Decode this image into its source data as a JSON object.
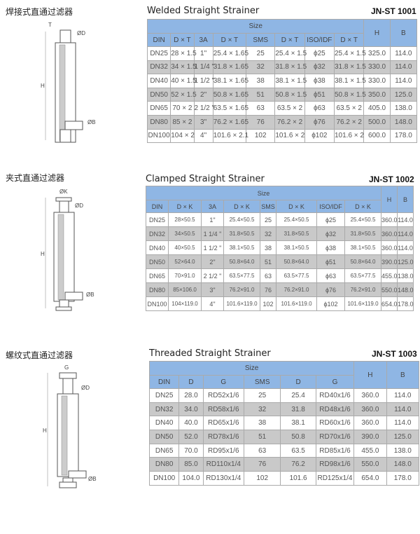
{
  "sections": [
    {
      "cn_title": "焊接式直通过滤器",
      "title": "Welded Straight Strainer",
      "code": "JN-ST 1001",
      "size_label": "Size",
      "headers": [
        "DIN",
        "D × T",
        "3A",
        "D × T",
        "SMS",
        "D × T",
        "ISO/IDF",
        "D × T"
      ],
      "h_label": "H",
      "b_label": "B",
      "dims": {
        "top": "T",
        "d": "ØD",
        "b": "ØB",
        "h": "H"
      },
      "rows": [
        [
          "DN25",
          "28 × 1.5",
          "1\"",
          "25.4 × 1.65",
          "25",
          "25.4 × 1.5",
          "ϕ25",
          "25.4 × 1.5",
          "325.0",
          "114.0"
        ],
        [
          "DN32",
          "34 × 1.5",
          "1 1/4 \"",
          "31.8 × 1.65",
          "32",
          "31.8 × 1.5",
          "ϕ32",
          "31.8 × 1.5",
          "330.0",
          "114.0"
        ],
        [
          "DN40",
          "40 × 1.5",
          "1 1/2 \"",
          "38.1 × 1.65",
          "38",
          "38.1 × 1.5",
          "ϕ38",
          "38.1 × 1.5",
          "330.0",
          "114.0"
        ],
        [
          "DN50",
          "52 × 1.5",
          "2\"",
          "50.8 × 1.65",
          "51",
          "50.8 × 1.5",
          "ϕ51",
          "50.8 × 1.5",
          "350.0",
          "125.0"
        ],
        [
          "DN65",
          "70 × 2",
          "2 1/2 \"",
          "63.5 × 1.65",
          "63",
          "63.5 × 2",
          "ϕ63",
          "63.5 × 2",
          "405.0",
          "138.0"
        ],
        [
          "DN80",
          "85 × 2",
          "3\"",
          "76.2 × 1.65",
          "76",
          "76.2 × 2",
          "ϕ76",
          "76.2 × 2",
          "500.0",
          "148.0"
        ],
        [
          "DN100",
          "104 × 2",
          "4\"",
          "101.6 × 2.1",
          "102",
          "101.6 × 2",
          "ϕ102",
          "101.6 × 2",
          "600.0",
          "178.0"
        ]
      ]
    },
    {
      "cn_title": "夹式直通过滤器",
      "title": "Clamped Straight Strainer",
      "code": "JN-ST 1002",
      "size_label": "Size",
      "headers": [
        "DIN",
        "D × K",
        "3A",
        "D × K",
        "SMS",
        "D × K",
        "ISO/IDF",
        "D × K"
      ],
      "h_label": "H",
      "b_label": "B",
      "dims": {
        "top": "ØK",
        "d": "ØD",
        "b": "ØB",
        "h": "H"
      },
      "rows": [
        [
          "DN25",
          "28×50.5",
          "1\"",
          "25.4×50.5",
          "25",
          "25.4×50.5",
          "ϕ25",
          "25.4×50.5",
          "360.0",
          "114.0"
        ],
        [
          "DN32",
          "34×50.5",
          "1 1/4 \"",
          "31.8×50.5",
          "32",
          "31.8×50.5",
          "ϕ32",
          "31.8×50.5",
          "360.0",
          "114.0"
        ],
        [
          "DN40",
          "40×50.5",
          "1 1/2 \"",
          "38.1×50.5",
          "38",
          "38.1×50.5",
          "ϕ38",
          "38.1×50.5",
          "360.0",
          "114.0"
        ],
        [
          "DN50",
          "52×64.0",
          "2\"",
          "50.8×64.0",
          "51",
          "50.8×64.0",
          "ϕ51",
          "50.8×64.0",
          "390.0",
          "125.0"
        ],
        [
          "DN65",
          "70×91.0",
          "2 1/2 \"",
          "63.5×77.5",
          "63",
          "63.5×77.5",
          "ϕ63",
          "63.5×77.5",
          "455.0",
          "138.0"
        ],
        [
          "DN80",
          "85×106.0",
          "3\"",
          "76.2×91.0",
          "76",
          "76.2×91.0",
          "ϕ76",
          "76.2×91.0",
          "550.0",
          "148.0"
        ],
        [
          "DN100",
          "104×119.0",
          "4\"",
          "101.6×119.0",
          "102",
          "101.6×119.0",
          "ϕ102",
          "101.6×119.0",
          "654.0",
          "178.0"
        ]
      ]
    },
    {
      "cn_title": "螺纹式直通过滤器",
      "title": "Threaded Straight Strainer",
      "code": "JN-ST 1003",
      "size_label": "Size",
      "headers": [
        "DIN",
        "D",
        "G",
        "SMS",
        "D",
        "G"
      ],
      "h_label": "H",
      "b_label": "B",
      "dims": {
        "top": "G",
        "d": "ØD",
        "b": "ØB",
        "h": "H"
      },
      "rows": [
        [
          "DN25",
          "28.0",
          "RD52x1/6",
          "25",
          "25.4",
          "RD40x1/6",
          "360.0",
          "114.0"
        ],
        [
          "DN32",
          "34.0",
          "RD58x1/6",
          "32",
          "31.8",
          "RD48x1/6",
          "360.0",
          "114.0"
        ],
        [
          "DN40",
          "40.0",
          "RD65x1/6",
          "38",
          "38.1",
          "RD60x1/6",
          "360.0",
          "114.0"
        ],
        [
          "DN50",
          "52.0",
          "RD78x1/6",
          "51",
          "50.8",
          "RD70x1/6",
          "390.0",
          "125.0"
        ],
        [
          "DN65",
          "70.0",
          "RD95x1/6",
          "63",
          "63.5",
          "RD85x1/6",
          "455.0",
          "138.0"
        ],
        [
          "DN80",
          "85.0",
          "RD110x1/4",
          "76",
          "76.2",
          "RD98x1/6",
          "550.0",
          "148.0"
        ],
        [
          "DN100",
          "104.0",
          "RD130x1/4",
          "102",
          "101.6",
          "RD125x1/4",
          "654.0",
          "178.0"
        ]
      ]
    }
  ],
  "colors": {
    "header": "#8fb6e4",
    "alt_row": "#c9c9c9"
  }
}
